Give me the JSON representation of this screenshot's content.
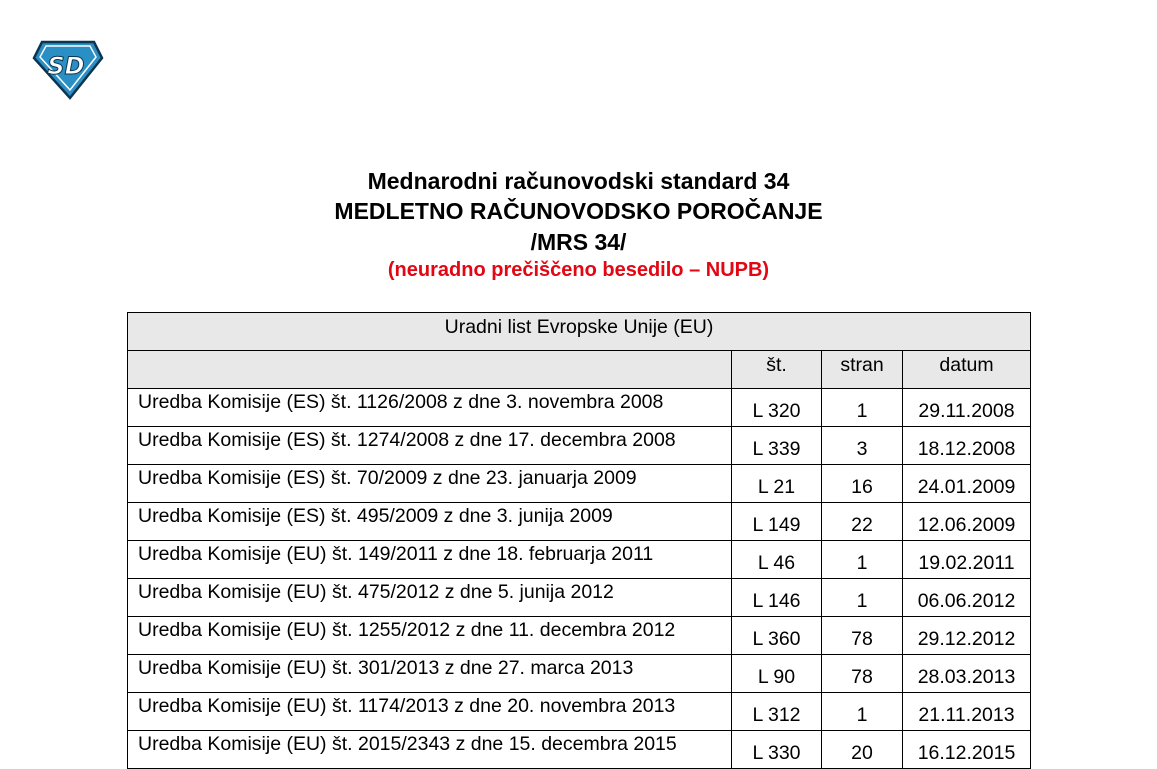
{
  "logo": {
    "text": "SD",
    "color": "#2a8fc4"
  },
  "title": {
    "line1": "Mednarodni računovodski standard 34",
    "line2": "MEDLETNO RAČUNOVODSKO POROČANJE",
    "line3": "/MRS 34/",
    "subtitle": "(neuradno prečiščeno besedilo – NUPB)",
    "subtitle_color": "#e30613"
  },
  "table": {
    "caption": "Uradni list Evropske Unije (EU)",
    "headers": [
      "",
      "št.",
      "stran",
      "datum"
    ],
    "rows": [
      [
        "Uredba Komisije (ES) št. 1126/2008 z dne 3. novembra 2008",
        "L 320",
        "1",
        "29.11.2008"
      ],
      [
        "Uredba Komisije (ES) št. 1274/2008 z dne 17. decembra 2008",
        "L 339",
        "3",
        "18.12.2008"
      ],
      [
        "Uredba Komisije (ES) št. 70/2009 z dne 23. januarja 2009",
        "L 21",
        "16",
        "24.01.2009"
      ],
      [
        "Uredba Komisije (ES) št. 495/2009 z dne 3. junija 2009",
        "L 149",
        "22",
        "12.06.2009"
      ],
      [
        "Uredba Komisije (EU) št. 149/2011 z dne 18. februarja 2011",
        "L 46",
        "1",
        "19.02.2011"
      ],
      [
        "Uredba Komisije (EU) št. 475/2012 z dne 5. junija 2012",
        "L 146",
        "1",
        "06.06.2012"
      ],
      [
        "Uredba Komisije (EU) št. 1255/2012 z dne 11. decembra 2012",
        "L 360",
        "78",
        "29.12.2012"
      ],
      [
        "Uredba Komisije (EU) št. 301/2013 z dne 27. marca 2013",
        "L 90",
        "78",
        "28.03.2013"
      ],
      [
        "Uredba Komisije (EU) št. 1174/2013 z dne 20. novembra 2013",
        "L 312",
        "1",
        "21.11.2013"
      ],
      [
        "Uredba Komisije (EU) št. 2015/2343 z dne 15. decembra 2015",
        "L 330",
        "20",
        "16.12.2015"
      ]
    ]
  }
}
